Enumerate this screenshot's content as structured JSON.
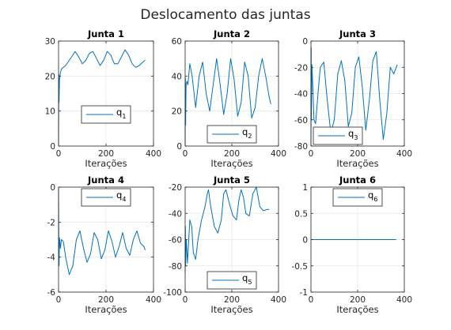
{
  "figure": {
    "title": "Deslocamento das juntas",
    "line_color": "#0072bd"
  },
  "chart_data": [
    {
      "type": "line",
      "title": "Junta 1",
      "xlabel": "Iterações",
      "ylabel": "",
      "xlim": [
        0,
        400
      ],
      "ylim": [
        0,
        30
      ],
      "xticks": [
        0,
        200,
        400
      ],
      "yticks": [
        0,
        10,
        20,
        30
      ],
      "grid": true,
      "legend": "center",
      "series": [
        {
          "name": "q_1",
          "legend_main": "q",
          "legend_sub": "1",
          "x": [
            0,
            1,
            2,
            4,
            8,
            12,
            20,
            30,
            40,
            55,
            70,
            85,
            100,
            115,
            130,
            145,
            160,
            175,
            190,
            205,
            220,
            235,
            250,
            265,
            280,
            295,
            310,
            325,
            340,
            355,
            365
          ],
          "y": [
            0,
            20.5,
            12.5,
            19,
            21,
            22,
            22.5,
            23,
            24,
            25.5,
            27,
            25.5,
            23.5,
            24.5,
            26.5,
            27,
            25,
            23,
            24.5,
            27,
            26,
            23.5,
            23.5,
            25.5,
            27.5,
            26,
            23.5,
            22.5,
            23,
            24,
            24.5
          ]
        }
      ]
    },
    {
      "type": "line",
      "title": "Junta 2",
      "xlabel": "Iterações",
      "ylabel": "",
      "xlim": [
        0,
        400
      ],
      "ylim": [
        0,
        60
      ],
      "xticks": [
        0,
        200,
        400
      ],
      "yticks": [
        0,
        20,
        40,
        60
      ],
      "grid": true,
      "legend": "bottom-center",
      "series": [
        {
          "name": "q_2",
          "legend_main": "q",
          "legend_sub": "2",
          "x": [
            0,
            1,
            2,
            4,
            8,
            12,
            20,
            30,
            45,
            60,
            75,
            90,
            105,
            120,
            135,
            150,
            165,
            180,
            195,
            210,
            225,
            240,
            255,
            270,
            285,
            300,
            315,
            330,
            345,
            360,
            367
          ],
          "y": [
            0,
            39,
            12,
            35,
            37,
            35,
            47,
            40,
            22,
            40,
            48,
            30,
            20,
            35,
            50,
            35,
            18,
            30,
            50,
            38,
            17,
            25,
            48,
            40,
            16,
            22,
            40,
            50,
            40,
            28,
            24
          ]
        }
      ]
    },
    {
      "type": "line",
      "title": "Junta 3",
      "xlabel": "Iterações",
      "ylabel": "",
      "xlim": [
        0,
        400
      ],
      "ylim": [
        -80,
        0
      ],
      "xticks": [
        0,
        200,
        400
      ],
      "yticks": [
        -80,
        -60,
        -40,
        -20,
        0
      ],
      "grid": true,
      "legend": "bottom-left",
      "series": [
        {
          "name": "q_3",
          "legend_main": "q",
          "legend_sub": "3",
          "x": [
            0,
            1,
            2,
            4,
            8,
            13,
            20,
            30,
            40,
            55,
            70,
            85,
            100,
            115,
            130,
            145,
            160,
            175,
            190,
            205,
            220,
            235,
            250,
            265,
            280,
            295,
            310,
            325,
            340,
            355,
            370
          ],
          "y": [
            -80,
            -5,
            -60,
            -18,
            -35,
            -60,
            -63,
            -40,
            -20,
            -16,
            -45,
            -70,
            -60,
            -25,
            -15,
            -30,
            -65,
            -55,
            -20,
            -12,
            -35,
            -68,
            -45,
            -15,
            -8,
            -45,
            -75,
            -55,
            -20,
            -25,
            -18
          ]
        }
      ]
    },
    {
      "type": "line",
      "title": "Junta 4",
      "xlabel": "Iterações",
      "ylabel": "",
      "xlim": [
        0,
        400
      ],
      "ylim": [
        -6,
        0
      ],
      "xticks": [
        0,
        200,
        400
      ],
      "yticks": [
        -6,
        -4,
        -2,
        0
      ],
      "grid": true,
      "legend": "top-center",
      "series": [
        {
          "name": "q_4",
          "legend_main": "q",
          "legend_sub": "4",
          "x": [
            0,
            1,
            2,
            4,
            8,
            12,
            20,
            30,
            45,
            60,
            75,
            90,
            105,
            120,
            135,
            150,
            165,
            180,
            195,
            210,
            225,
            240,
            255,
            270,
            285,
            300,
            315,
            330,
            345,
            360,
            365
          ],
          "y": [
            0,
            -3.2,
            -4.5,
            -2.9,
            -3.5,
            -3.0,
            -3.1,
            -4.0,
            -5.0,
            -4.5,
            -3.0,
            -2.5,
            -3.5,
            -4.3,
            -3.8,
            -2.6,
            -3.0,
            -4.1,
            -3.6,
            -2.5,
            -3.1,
            -4.0,
            -3.4,
            -2.6,
            -3.5,
            -3.9,
            -3.0,
            -2.5,
            -3.2,
            -3.4,
            -3.6
          ]
        }
      ]
    },
    {
      "type": "line",
      "title": "Junta 5",
      "xlabel": "Iterações",
      "ylabel": "",
      "xlim": [
        0,
        400
      ],
      "ylim": [
        -100,
        -20
      ],
      "xticks": [
        0,
        200,
        400
      ],
      "yticks": [
        -100,
        -80,
        -60,
        -40,
        -20
      ],
      "grid": true,
      "legend": "bottom-center",
      "series": [
        {
          "name": "q_5",
          "legend_main": "q",
          "legend_sub": "5",
          "x": [
            0,
            1,
            2,
            5,
            10,
            15,
            20,
            28,
            35,
            45,
            55,
            70,
            85,
            95,
            100,
            110,
            125,
            140,
            155,
            165,
            175,
            190,
            205,
            220,
            230,
            240,
            250,
            260,
            275,
            290,
            305,
            320,
            335,
            350,
            360
          ],
          "y": [
            -85,
            -50,
            -80,
            -60,
            -78,
            -62,
            -45,
            -50,
            -70,
            -75,
            -60,
            -45,
            -35,
            -25,
            -22,
            -35,
            -50,
            -55,
            -45,
            -25,
            -22,
            -33,
            -42,
            -45,
            -30,
            -22,
            -28,
            -40,
            -42,
            -25,
            -20,
            -35,
            -38,
            -37,
            -37
          ]
        }
      ]
    },
    {
      "type": "line",
      "title": "Junta 6",
      "xlabel": "Iterações",
      "ylabel": "",
      "xlim": [
        0,
        400
      ],
      "ylim": [
        -1,
        1
      ],
      "xticks": [
        0,
        200,
        400
      ],
      "yticks": [
        -1,
        -0.5,
        0,
        0.5,
        1
      ],
      "grid": true,
      "legend": "top-center",
      "series": [
        {
          "name": "q_6",
          "legend_main": "q",
          "legend_sub": "6",
          "x": [
            0,
            365
          ],
          "y": [
            0,
            0
          ]
        }
      ]
    }
  ]
}
